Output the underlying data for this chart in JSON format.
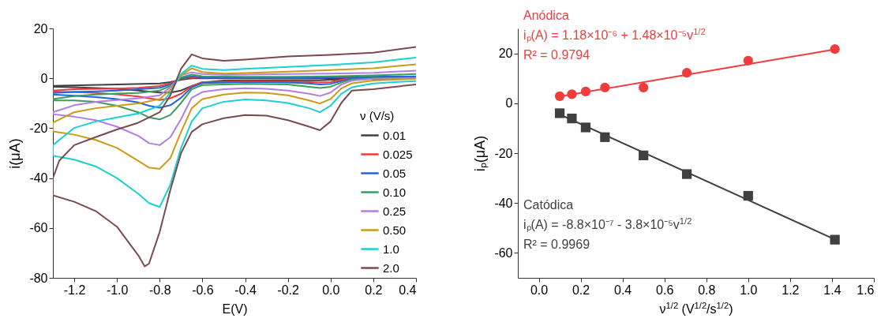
{
  "chart_data": [
    {
      "type": "line",
      "xlabel": "E(V)",
      "ylabel": "i(μA)",
      "legend_title": "ν (V/s)",
      "legend": "bottom right",
      "xlim": [
        -1.3,
        0.4
      ],
      "xticks": [
        -1.2,
        {
          "value": -1,
          "label": "-1.0"
        },
        -0.8,
        -0.6,
        -0.4,
        -0.2,
        {
          "value": 0,
          "label": "0.0"
        },
        0.2,
        0.4
      ],
      "ylim": [
        -80,
        20
      ],
      "yticks": [
        -80,
        -60,
        -40,
        -20,
        0,
        20
      ],
      "series": [
        {
          "name": "0.01",
          "color": "#404040",
          "x": [
            0.4,
            0,
            -0.05,
            -0.2,
            -0.5,
            -0.6,
            -0.65,
            -0.7,
            -0.75,
            -0.8,
            -0.85,
            -0.9,
            -1.0,
            -1.2,
            -1.3,
            -1.3,
            -1.0,
            -0.8,
            -0.75,
            -0.7,
            -0.65,
            -0.6,
            0,
            0.4
          ],
          "values": [
            0.1,
            -0.6,
            -0.8,
            -0.8,
            -0.9,
            -1.7,
            -3.1,
            -4.9,
            -5.7,
            -5.7,
            -5.3,
            -4.9,
            -4.2,
            -3.6,
            -3.4,
            -3.0,
            -2.5,
            -2.1,
            -1.5,
            -0.6,
            0,
            0,
            0.1,
            0.4
          ]
        },
        {
          "name": "0.025",
          "color": "#ef3b3b",
          "x": [
            0.4,
            0.1,
            0.05,
            0,
            -0.05,
            -0.1,
            -0.2,
            -0.4,
            -0.6,
            -0.65,
            -0.7,
            -0.75,
            -0.8,
            -0.85,
            -0.9,
            -1.0,
            -1.1,
            -1.2,
            -1.3,
            -1.3,
            -1.2,
            -1.0,
            -0.9,
            -0.8,
            -0.75,
            -0.7,
            -0.65,
            -0.6,
            -0.2,
            0.4
          ],
          "values": [
            0.4,
            0.1,
            -0.6,
            -1.5,
            -1.7,
            -1.5,
            -1.3,
            -1.2,
            -1.5,
            -3.1,
            -6.2,
            -8.0,
            -8.7,
            -8.0,
            -7.3,
            -6.4,
            -5.9,
            -5.5,
            -5.2,
            -4.9,
            -4.4,
            -4.1,
            -3.8,
            -3.1,
            -2.0,
            -0.2,
            0.4,
            0.2,
            0.2,
            0.6
          ]
        },
        {
          "name": "0.05",
          "color": "#2563d8",
          "x": [
            0.4,
            0.2,
            0.1,
            0.05,
            0,
            -0.05,
            -0.1,
            -0.2,
            -0.4,
            -0.6,
            -0.65,
            -0.7,
            -0.75,
            -0.8,
            -0.85,
            -0.9,
            -1.0,
            -1.1,
            -1.2,
            -1.3,
            -1.3,
            -1.2,
            -1.1,
            -1.0,
            -0.9,
            -0.8,
            -0.75,
            -0.7,
            -0.65,
            -0.6,
            -0.2,
            0.4
          ],
          "values": [
            0.4,
            0.2,
            -0.2,
            -1.1,
            -2.2,
            -2.5,
            -2.1,
            -1.7,
            -1.5,
            -1.9,
            -3.6,
            -7.8,
            -10.8,
            -11.8,
            -11,
            -9.7,
            -8.3,
            -7.5,
            -7.0,
            -6.5,
            -5.9,
            -5.5,
            -5.2,
            -4.9,
            -4.4,
            -3.8,
            -2.5,
            0.1,
            0.8,
            0.4,
            0.2,
            0.8
          ]
        },
        {
          "name": "0.10",
          "color": "#3a9e5e",
          "x": [
            0.4,
            0.2,
            0.1,
            0.05,
            0,
            -0.05,
            -0.1,
            -0.2,
            -0.4,
            -0.6,
            -0.65,
            -0.7,
            -0.75,
            -0.8,
            -0.85,
            -0.9,
            -1.0,
            -1.1,
            -1.2,
            -1.3,
            -1.3,
            -1.2,
            -1.1,
            -1.0,
            -0.9,
            -0.8,
            -0.75,
            -0.7,
            -0.65,
            -0.6,
            -0.4,
            -0.2,
            0,
            0.2,
            0.4
          ],
          "values": [
            0.2,
            0,
            -0.4,
            -1.7,
            -3.4,
            -3.9,
            -3.4,
            -2.5,
            -2.2,
            -2.7,
            -4.4,
            -9.9,
            -14.7,
            -16.5,
            -15.7,
            -13.6,
            -11,
            -9.4,
            -8.9,
            -8.9,
            -8.3,
            -7.1,
            -6.5,
            -6.1,
            -5.9,
            -4.9,
            -3.1,
            0.4,
            1.5,
            0.8,
            0.6,
            0.6,
            0.8,
            1.2,
            1.7
          ]
        },
        {
          "name": "0.25",
          "color": "#b07ee6",
          "x": [
            0.4,
            0.2,
            0.1,
            0.05,
            0,
            -0.05,
            -0.1,
            -0.2,
            -0.3,
            -0.4,
            -0.5,
            -0.6,
            -0.65,
            -0.7,
            -0.75,
            -0.8,
            -0.85,
            -0.9,
            -1.0,
            -1.1,
            -1.2,
            -1.3,
            -1.3,
            -1.2,
            -1.1,
            -1.0,
            -0.9,
            -0.8,
            -0.75,
            -0.7,
            -0.65,
            -0.6,
            -0.5,
            -0.4,
            -0.2,
            0,
            0.2,
            0.4
          ],
          "values": [
            0.1,
            -0.2,
            -0.9,
            -2.5,
            -5.7,
            -7.1,
            -6.2,
            -4.9,
            -4.2,
            -4.0,
            -4.4,
            -5.5,
            -7.8,
            -16.3,
            -23.6,
            -26.8,
            -26,
            -23.1,
            -19.4,
            -16.8,
            -15.4,
            -14.4,
            -13.6,
            -10.8,
            -9.4,
            -8.7,
            -8.0,
            -6.8,
            -3.6,
            1.2,
            2.4,
            1.7,
            1.4,
            1.5,
            1.7,
            1.9,
            2.2,
            3.1
          ]
        },
        {
          "name": "0.50",
          "color": "#cc9a14",
          "x": [
            0.4,
            0.2,
            0.1,
            0.05,
            0,
            -0.05,
            -0.1,
            -0.2,
            -0.3,
            -0.4,
            -0.5,
            -0.6,
            -0.65,
            -0.7,
            -0.75,
            -0.8,
            -0.85,
            -0.9,
            -1.0,
            -1.1,
            -1.2,
            -1.3,
            -1.3,
            -1.2,
            -1.1,
            -1.0,
            -0.9,
            -0.8,
            -0.75,
            -0.7,
            -0.65,
            -0.6,
            -0.5,
            -0.4,
            -0.2,
            0,
            0.2,
            0.4
          ],
          "values": [
            -0.2,
            -0.9,
            -2,
            -4.1,
            -8.3,
            -10.1,
            -8.9,
            -6.8,
            -5.9,
            -5.7,
            -6.5,
            -8.3,
            -12,
            -21.5,
            -32,
            -36.3,
            -35.8,
            -33.1,
            -27.9,
            -24.7,
            -22.6,
            -21.3,
            -17.8,
            -13.6,
            -12,
            -11,
            -10.1,
            -8.3,
            -4.6,
            1.2,
            4.0,
            2.5,
            1.9,
            2.1,
            2.7,
            3.3,
            4.0,
            5.6
          ]
        },
        {
          "name": "1.0",
          "color": "#1ad0d0",
          "x": [
            0.4,
            0.3,
            0.2,
            0.1,
            0.05,
            0,
            -0.05,
            -0.1,
            -0.2,
            -0.3,
            -0.4,
            -0.5,
            -0.6,
            -0.65,
            -0.7,
            -0.75,
            -0.8,
            -0.85,
            -0.9,
            -1.0,
            -1.1,
            -1.2,
            -1.3,
            -1.3,
            -1.2,
            -1.1,
            -1.0,
            -0.9,
            -0.8,
            -0.75,
            -0.7,
            -0.65,
            -0.6,
            -0.5,
            -0.4,
            -0.2,
            0,
            0.2,
            0.4
          ],
          "values": [
            -1.1,
            -1.5,
            -2.1,
            -3.6,
            -6.2,
            -11,
            -13.6,
            -12,
            -9.9,
            -8.9,
            -8.5,
            -9.4,
            -12,
            -17.3,
            -27.9,
            -42.6,
            -51.6,
            -50,
            -46.3,
            -40,
            -35.3,
            -32.6,
            -31,
            -26.8,
            -19.9,
            -17.3,
            -15.7,
            -14.1,
            -11,
            -5.7,
            1.7,
            5.1,
            3.8,
            3.3,
            3.8,
            4.6,
            5.4,
            6.4,
            8.3
          ]
        },
        {
          "name": "2.0",
          "color": "#7a4a4e",
          "x": [
            0.4,
            0.3,
            0.2,
            0.1,
            0.05,
            0,
            -0.05,
            -0.1,
            -0.2,
            -0.3,
            -0.4,
            -0.5,
            -0.6,
            -0.65,
            -0.7,
            -0.75,
            -0.8,
            -0.85,
            -0.87,
            -0.9,
            -1.0,
            -1.1,
            -1.2,
            -1.3,
            -1.3,
            -1.27,
            -1.2,
            -1.1,
            -1.0,
            -0.9,
            -0.8,
            -0.75,
            -0.7,
            -0.65,
            -0.6,
            -0.5,
            -0.4,
            -0.2,
            0,
            0.2,
            0.4
          ],
          "values": [
            -2.5,
            -3.4,
            -4.4,
            -4.9,
            -9.9,
            -17.3,
            -20.8,
            -19.4,
            -16.8,
            -15.0,
            -14.7,
            -16.0,
            -18.4,
            -21.5,
            -30,
            -44.7,
            -61.6,
            -74.3,
            -75.4,
            -71,
            -59.5,
            -53.2,
            -49.5,
            -46.9,
            -40,
            -33,
            -26.8,
            -23.6,
            -20.5,
            -17.8,
            -13.6,
            -6.8,
            3.8,
            9.6,
            8.0,
            7.0,
            7.5,
            8.8,
            9.4,
            10.3,
            12.6
          ]
        }
      ]
    },
    {
      "type": "scatter",
      "xlabel": "ν$^{1/2}$ (V$^{1/2}$/s$^{1/2}$)",
      "ylabel": "iₚ(μA)",
      "xlim": [
        -0.1,
        1.6
      ],
      "xticks": [
        {
          "value": 0,
          "label": "0.0"
        },
        0.2,
        0.4,
        0.6,
        0.8,
        {
          "value": 1,
          "label": "1.0"
        },
        1.2,
        1.4,
        1.6
      ],
      "ylim": [
        -70,
        30
      ],
      "yticks": [
        -60,
        -40,
        -20,
        0,
        20
      ],
      "annotations": [
        "iₚ(A) = 1.18×10⁻⁶ + 1.48×10⁻⁵v$^{1/2}$",
        "R² = 0.9794",
        "iₚ(A) = -8.8×10⁻⁷ - 3.8×10⁻⁵v$^{1/2}$",
        "R² = 0.9969"
      ],
      "series": [
        {
          "name": "Anódica",
          "marker": "circle",
          "color": "#f03c3c",
          "x": [
            0.1,
            0.158,
            0.224,
            0.316,
            0.5,
            0.707,
            1.0,
            1.414
          ],
          "values": [
            2.8,
            3.6,
            4.7,
            6.3,
            6.3,
            12.2,
            17.1,
            21.7
          ]
        },
        {
          "name": "Catódica",
          "marker": "square",
          "color": "#404040",
          "x": [
            0.1,
            0.158,
            0.224,
            0.316,
            0.5,
            0.707,
            1.0,
            1.414
          ],
          "values": [
            -4.0,
            -6.1,
            -9.7,
            -13.6,
            -20.9,
            -28.4,
            -37.1,
            -54.7
          ]
        },
        {
          "type": "line",
          "color": "#f03c3c",
          "x": [
            0.1,
            1.414
          ],
          "values": [
            2.7,
            21.6
          ]
        },
        {
          "type": "line",
          "color": "#404040",
          "x": [
            0.1,
            1.414
          ],
          "values": [
            -4.5,
            -54.6
          ]
        }
      ]
    }
  ]
}
